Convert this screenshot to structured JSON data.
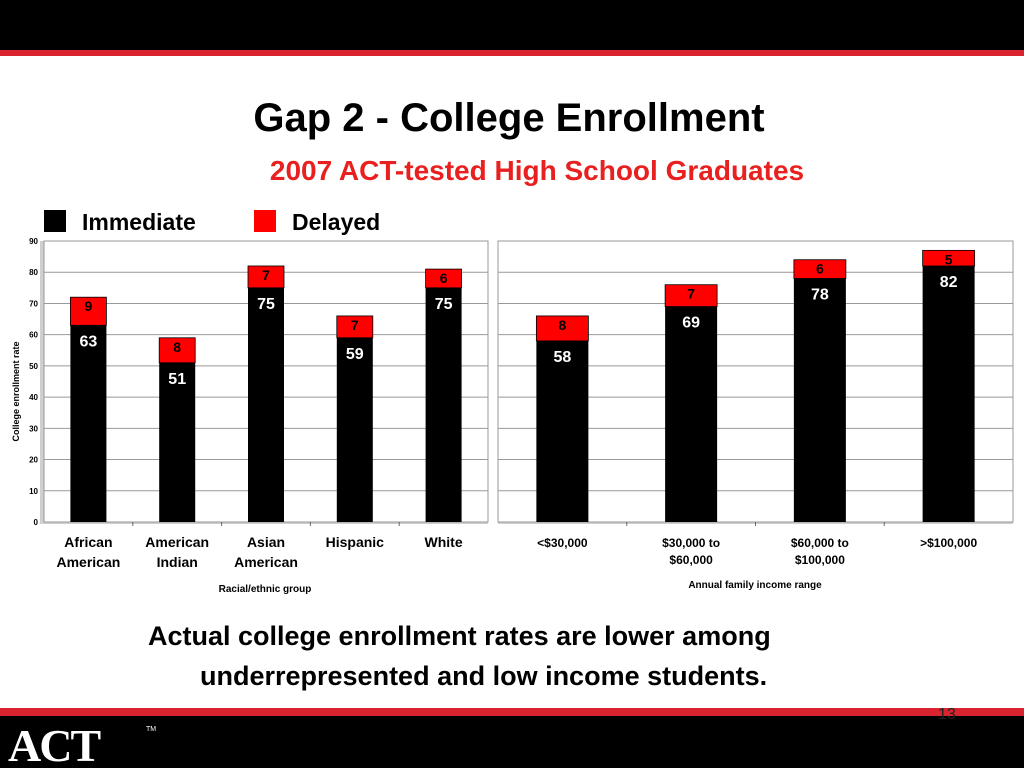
{
  "slide": {
    "title": "Gap 2 - College Enrollment",
    "subtitle": "2007 ACT-tested High School Graduates",
    "caption_line1": "Actual college enrollment rates are lower among",
    "caption_line2": "underrepresented and low income students.",
    "page_number": "13",
    "logo_text": "ACT",
    "logo_mark": "TM"
  },
  "colors": {
    "immediate": "#000000",
    "delayed": "#ff0000",
    "accent_red": "#e8201f",
    "plot_background": "#ffffff",
    "frame_background": "#cfcfcf"
  },
  "chart_data": [
    {
      "type": "bar",
      "stacked": true,
      "xlabel": "Racial/ethnic group",
      "ylabel": "College enrollment rate",
      "ylim": [
        0,
        90
      ],
      "yticks": [
        0,
        10,
        20,
        30,
        40,
        50,
        60,
        70,
        80,
        90
      ],
      "grid": true,
      "legend": {
        "position": "top-left",
        "entries": [
          "Immediate",
          "Delayed"
        ]
      },
      "categories": [
        [
          "African",
          "American"
        ],
        [
          "American",
          "Indian"
        ],
        [
          "Asian",
          "American"
        ],
        [
          "Hispanic"
        ],
        [
          "White"
        ]
      ],
      "series": [
        {
          "name": "Immediate",
          "values": [
            63,
            51,
            75,
            59,
            75
          ]
        },
        {
          "name": "Delayed",
          "values": [
            9,
            8,
            7,
            7,
            6
          ]
        }
      ]
    },
    {
      "type": "bar",
      "stacked": true,
      "xlabel": "Annual family income range",
      "ylim": [
        0,
        90
      ],
      "grid": true,
      "categories": [
        [
          "<$30,000"
        ],
        [
          "$30,000 to",
          "$60,000"
        ],
        [
          "$60,000 to",
          "$100,000"
        ],
        [
          ">$100,000"
        ]
      ],
      "series": [
        {
          "name": "Immediate",
          "values": [
            58,
            69,
            78,
            82
          ]
        },
        {
          "name": "Delayed",
          "values": [
            8,
            7,
            6,
            5
          ]
        }
      ]
    }
  ]
}
